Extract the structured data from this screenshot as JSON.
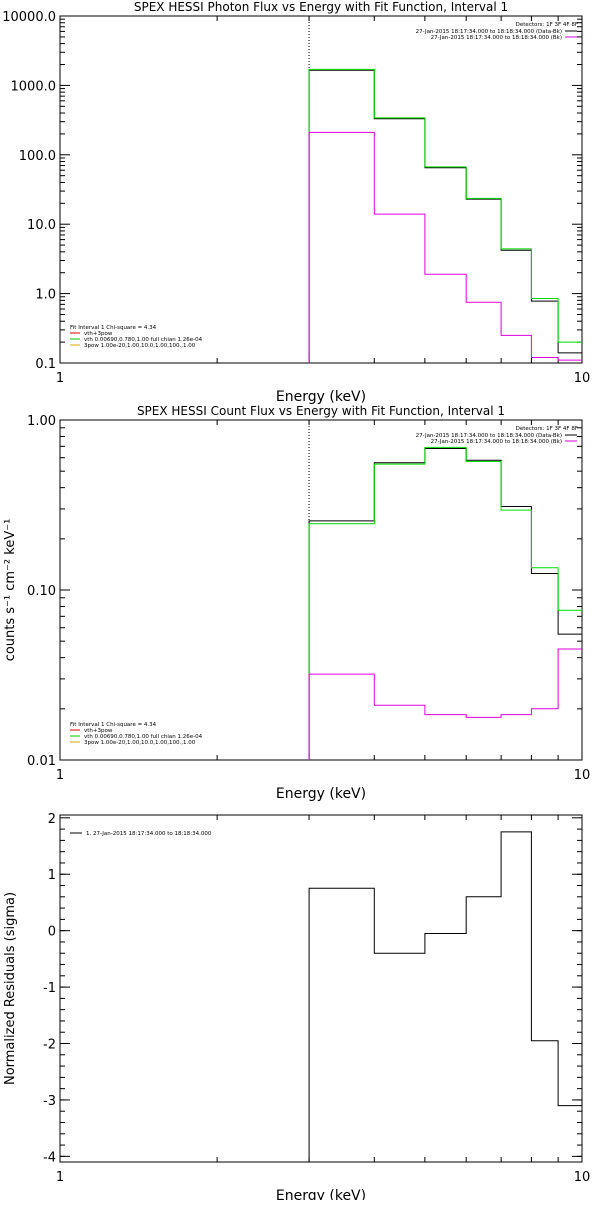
{
  "colors": {
    "background": "#ffffff",
    "axis": "#000000",
    "data_series": "#000000",
    "fit_total": "#00dd00",
    "background_series": "#dd00dd",
    "component_vth": "#00cc00",
    "component_3pow": "#ddaa00",
    "legend_first_line": "#dd0000"
  },
  "chart_data": [
    {
      "type": "line",
      "name": "photon-flux",
      "title": "SPEX HESSI Photon Flux vs Energy with Fit Function, Interval 1",
      "xlabel": "Energy (keV)",
      "ylabel": "",
      "x_scale": "log",
      "y_scale": "log",
      "xlim": [
        1,
        10
      ],
      "ylim": [
        0.1,
        10000
      ],
      "x_ticks": [
        {
          "v": 1,
          "label": "1"
        },
        {
          "v": 10,
          "label": "10"
        }
      ],
      "y_ticks": [
        {
          "v": 10000,
          "label": "10000.0"
        },
        {
          "v": 1000,
          "label": "1000.0"
        },
        {
          "v": 100,
          "label": "100.0"
        },
        {
          "v": 10,
          "label": "10.0"
        },
        {
          "v": 1,
          "label": "1.0"
        },
        {
          "v": 0.1,
          "label": "0.1"
        }
      ],
      "vline_x": 3.0,
      "series": [
        {
          "role": "data",
          "color": "#000000",
          "edges": [
            3,
            4,
            5,
            6,
            7,
            8,
            9,
            10
          ],
          "values": [
            1650,
            330,
            65,
            23,
            4.2,
            0.78,
            0.14
          ]
        },
        {
          "role": "fit",
          "color": "#00dd00",
          "edges": [
            3,
            4,
            5,
            6,
            7,
            8,
            9,
            10
          ],
          "values": [
            1700,
            340,
            67,
            23.5,
            4.4,
            0.85,
            0.2
          ]
        },
        {
          "role": "background",
          "color": "#dd00dd",
          "edges": [
            3,
            4,
            5,
            6,
            7,
            8,
            9,
            10
          ],
          "values": [
            210,
            14,
            1.9,
            0.75,
            0.25,
            0.12,
            0.11
          ]
        }
      ],
      "legend_top": {
        "header": "Detectors: 1F 3F 4F 8F",
        "items": [
          {
            "label": "27-Jan-2015 18:17:34.000 to 18:18:34.000 (Data-Bk)",
            "color": "#000000"
          },
          {
            "label": "27-Jan-2015 18:17:34.000 to 18:18:34.000 (Bk)",
            "color": "#dd00dd"
          }
        ]
      },
      "legend_bottom": {
        "header": "Fit Interval 1    Chi-square = 4.34",
        "items": [
          {
            "label": "vth+3pow",
            "color": "#dd0000"
          },
          {
            "label": "vth 0.00690,0.780,1.00   full chian 1.26e-04",
            "color": "#00cc00"
          },
          {
            "label": "3pow 1.00e-20,1.00,10.0,1.00,100.,1.00",
            "color": "#ddaa00"
          }
        ]
      }
    },
    {
      "type": "line",
      "name": "count-flux",
      "title": "SPEX HESSI Count Flux vs Energy with Fit Function, Interval 1",
      "xlabel": "Energy (keV)",
      "ylabel": "counts s⁻¹ cm⁻² keV⁻¹",
      "x_scale": "log",
      "y_scale": "log",
      "xlim": [
        1,
        10
      ],
      "ylim": [
        0.01,
        1.0
      ],
      "x_ticks": [
        {
          "v": 1,
          "label": "1"
        },
        {
          "v": 10,
          "label": "10"
        }
      ],
      "y_ticks": [
        {
          "v": 1.0,
          "label": "1.00"
        },
        {
          "v": 0.1,
          "label": "0.10"
        },
        {
          "v": 0.01,
          "label": "0.01"
        }
      ],
      "vline_x": 3.0,
      "series": [
        {
          "role": "data",
          "color": "#000000",
          "edges": [
            3,
            4,
            5,
            6,
            7,
            8,
            9,
            10
          ],
          "values": [
            0.255,
            0.56,
            0.68,
            0.58,
            0.31,
            0.125,
            0.055
          ]
        },
        {
          "role": "fit",
          "color": "#00dd00",
          "edges": [
            3,
            4,
            5,
            6,
            7,
            8,
            9,
            10
          ],
          "values": [
            0.245,
            0.55,
            0.69,
            0.57,
            0.295,
            0.135,
            0.076
          ]
        },
        {
          "role": "background",
          "color": "#dd00dd",
          "edges": [
            3,
            4,
            5,
            6,
            7,
            8,
            9,
            10
          ],
          "values": [
            0.032,
            0.021,
            0.0185,
            0.0178,
            0.0185,
            0.02,
            0.045
          ]
        }
      ],
      "legend_top": {
        "header": "Detectors: 1F 3F 4F 8F",
        "items": [
          {
            "label": "27-Jan-2015 18:17:34.000 to 18:18:34.000 (Data-Bk)",
            "color": "#000000"
          },
          {
            "label": "27-Jan-2015 18:17:34.000 to 18:18:34.000 (Bk)",
            "color": "#dd00dd"
          }
        ]
      },
      "legend_bottom": {
        "header": "Fit Interval 1    Chi-square = 4.34",
        "items": [
          {
            "label": "vth+3pow",
            "color": "#dd0000"
          },
          {
            "label": "vth 0.00690,0.780,1.00   full chian 1.26e-04",
            "color": "#00cc00"
          },
          {
            "label": "3pow 1.00e-20,1.00,10.0,1.00,100.,1.00",
            "color": "#ddaa00"
          }
        ]
      }
    },
    {
      "type": "line",
      "name": "residuals",
      "title": "",
      "xlabel": "Energy (keV)",
      "ylabel": "Normalized Residuals (sigma)",
      "x_scale": "log",
      "y_scale": "linear",
      "xlim": [
        1,
        10
      ],
      "ylim": [
        -4.1,
        2.05
      ],
      "x_ticks": [
        {
          "v": 1,
          "label": "1"
        },
        {
          "v": 10,
          "label": "10"
        }
      ],
      "y_ticks": [
        {
          "v": 2,
          "label": "2"
        },
        {
          "v": 1,
          "label": "1"
        },
        {
          "v": 0,
          "label": "0"
        },
        {
          "v": -1,
          "label": "-1"
        },
        {
          "v": -2,
          "label": "-2"
        },
        {
          "v": -3,
          "label": "-3"
        },
        {
          "v": -4,
          "label": "-4"
        }
      ],
      "series": [
        {
          "role": "residual",
          "color": "#000000",
          "edges": [
            3,
            4,
            5,
            6,
            7,
            8,
            9,
            10
          ],
          "values": [
            0.75,
            -0.4,
            -0.05,
            0.6,
            1.75,
            -1.95,
            -3.1
          ]
        }
      ],
      "legend_top": {
        "header": "",
        "items": [
          {
            "label": "1. 27-Jan-2015 18:17:34.000 to 18:18:34.000",
            "color": "#000000"
          }
        ]
      }
    }
  ]
}
